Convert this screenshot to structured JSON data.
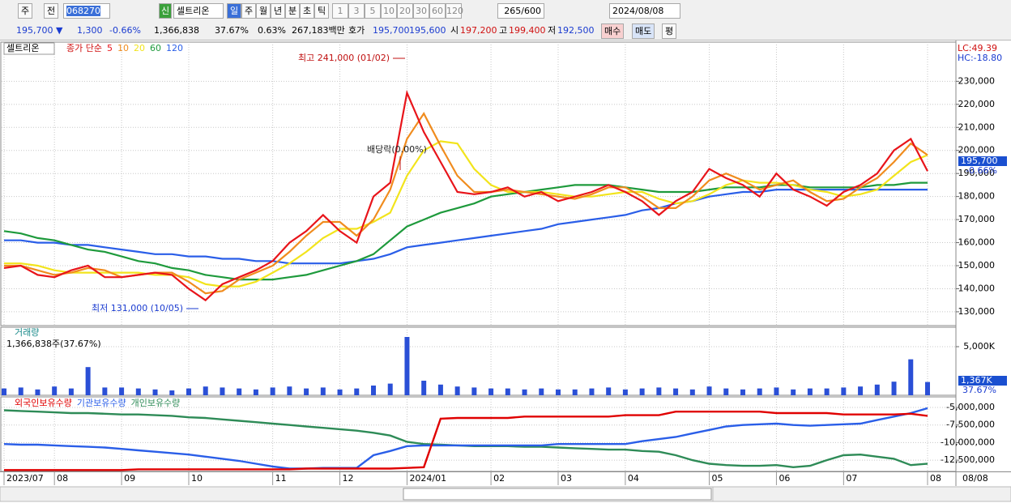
{
  "toolbar": {
    "period": "주",
    "mode": "전",
    "code": "068270",
    "badge": "신",
    "name": "셀트리온",
    "intervals": [
      "일",
      "주",
      "월",
      "년",
      "분",
      "초",
      "틱"
    ],
    "multipliers": [
      "1",
      "3",
      "5",
      "10",
      "20",
      "30",
      "60",
      "120"
    ],
    "count": "265",
    "max": "/600",
    "date": "2024/08/08"
  },
  "info_bar": {
    "price": "195,700 ▼",
    "change": "1,300",
    "change_pct": "-0.66%",
    "volume": "1,366,838",
    "volume_ratio": "37.67%",
    "turnover_pct": "0.63%",
    "amount": "267,183백만",
    "quote_label": "호가",
    "ask": "195,700",
    "bid": "195,600",
    "open_label": "시",
    "open": "197,200",
    "high_label": "고",
    "high": "199,400",
    "low_label": "저",
    "low": "192,500",
    "buy": "매수",
    "sell": "매도",
    "avg": "평"
  },
  "chart_data": [
    {
      "type": "line",
      "title": "셀트리온",
      "legend_title": "종가 단순",
      "series": [
        {
          "name": "5",
          "color": "#e8141a",
          "values": [
            149000,
            150000,
            146000,
            145000,
            148000,
            150000,
            145000,
            145000,
            146000,
            147000,
            146000,
            140000,
            135000,
            142000,
            145000,
            148000,
            152000,
            160000,
            165000,
            172000,
            165000,
            160000,
            180000,
            186000,
            225000,
            208000,
            195000,
            182000,
            181000,
            182000,
            184000,
            180000,
            182000,
            178000,
            180000,
            182000,
            185000,
            182000,
            178000,
            172000,
            178000,
            182000,
            192000,
            188000,
            185000,
            180000,
            190000,
            183000,
            180000,
            176000,
            182000,
            185000,
            190000,
            200000,
            205000,
            191000
          ]
        },
        {
          "name": "10",
          "color": "#f08c1e",
          "values": [
            150000,
            150000,
            148000,
            146000,
            147000,
            149000,
            148000,
            145000,
            146000,
            147000,
            147000,
            143000,
            138000,
            139000,
            144000,
            147000,
            150000,
            156000,
            163000,
            169000,
            169000,
            163000,
            170000,
            183000,
            205000,
            216000,
            202000,
            189000,
            182000,
            182000,
            183000,
            182000,
            181000,
            180000,
            179000,
            181000,
            184000,
            184000,
            180000,
            175000,
            175000,
            180000,
            187000,
            190000,
            187000,
            183000,
            185000,
            187000,
            182000,
            178000,
            179000,
            184000,
            188000,
            195000,
            203000,
            198000
          ]
        },
        {
          "name": "20",
          "color": "#f2e41c",
          "values": [
            151000,
            151000,
            150000,
            148000,
            147000,
            147000,
            147000,
            147000,
            147000,
            146000,
            146000,
            145000,
            142000,
            141000,
            141000,
            143000,
            147000,
            151000,
            156000,
            162000,
            166000,
            166000,
            169000,
            173000,
            189000,
            200000,
            204000,
            203000,
            192000,
            185000,
            182000,
            182000,
            182000,
            181000,
            180000,
            180000,
            181000,
            182000,
            182000,
            179000,
            177000,
            178000,
            181000,
            185000,
            187000,
            186000,
            186000,
            185000,
            183000,
            182000,
            180000,
            181000,
            183000,
            189000,
            195000,
            198000
          ]
        },
        {
          "name": "60",
          "color": "#1e9a3c",
          "values": [
            165000,
            164000,
            162000,
            161000,
            159000,
            157000,
            156000,
            154000,
            152000,
            151000,
            149000,
            148000,
            146000,
            145000,
            144000,
            144000,
            144000,
            145000,
            146000,
            148000,
            150000,
            152000,
            155000,
            161000,
            167000,
            170000,
            173000,
            175000,
            177000,
            180000,
            181000,
            182000,
            183000,
            184000,
            185000,
            185000,
            185000,
            184000,
            183000,
            182000,
            182000,
            182000,
            183000,
            184000,
            184000,
            184000,
            185000,
            185000,
            184000,
            184000,
            184000,
            184000,
            185000,
            185000,
            186000,
            186000
          ]
        },
        {
          "name": "120",
          "color": "#2a5ee8",
          "values": [
            161000,
            161000,
            160000,
            160000,
            159000,
            159000,
            158000,
            157000,
            156000,
            155000,
            155000,
            154000,
            154000,
            153000,
            153000,
            152000,
            152000,
            151000,
            151000,
            151000,
            151000,
            152000,
            153000,
            155000,
            158000,
            159000,
            160000,
            161000,
            162000,
            163000,
            164000,
            165000,
            166000,
            168000,
            169000,
            170000,
            171000,
            172000,
            174000,
            175000,
            177000,
            178000,
            180000,
            181000,
            182000,
            182000,
            183000,
            183000,
            183000,
            183000,
            183000,
            183000,
            183000,
            183000,
            183000,
            183000
          ]
        }
      ],
      "ylim": [
        124000,
        247000
      ],
      "yticks": [
        {
          "value": 130000,
          "label": "130,000"
        },
        {
          "value": 140000,
          "label": "140,000"
        },
        {
          "value": 150000,
          "label": "150,000"
        },
        {
          "value": 160000,
          "label": "160,000"
        },
        {
          "value": 170000,
          "label": "170,000"
        },
        {
          "value": 180000,
          "label": "180,000"
        },
        {
          "value": 190000,
          "label": "190,000"
        },
        {
          "value": 200000,
          "label": "200,000"
        },
        {
          "value": 210000,
          "label": "210,000"
        },
        {
          "value": 220000,
          "label": "220,000"
        },
        {
          "value": 230000,
          "label": "230,000"
        }
      ],
      "grid": true,
      "annotations": [
        "최고 241,000 (01/02)",
        "배당락(0.00%)",
        "최저 131,000 (10/05)"
      ],
      "corner_labels": [
        "LC:49.39",
        "HC:-18.80"
      ],
      "last_price": "195,700",
      "last_change": "-0.66%"
    },
    {
      "type": "bar",
      "title": "거래량",
      "subtitle": "1,366,838주(37.67%)",
      "color": "#2a4fd6",
      "values": [
        700000,
        800000,
        600000,
        900000,
        700000,
        2900000,
        800000,
        800000,
        700000,
        600000,
        500000,
        700000,
        900000,
        800000,
        700000,
        600000,
        800000,
        900000,
        700000,
        800000,
        600000,
        700000,
        1000000,
        1200000,
        6000000,
        1500000,
        1100000,
        900000,
        800000,
        700000,
        700000,
        600000,
        700000,
        600000,
        600000,
        700000,
        800000,
        600000,
        700000,
        800000,
        700000,
        600000,
        900000,
        700000,
        600000,
        700000,
        800000,
        600000,
        700000,
        700000,
        800000,
        900000,
        1100000,
        1400000,
        3700000,
        1366838
      ],
      "ylim": [
        0,
        7000000
      ],
      "yticks": [
        {
          "value": 5000000,
          "label": "5,000K"
        }
      ],
      "grid": true,
      "last_label": "1,367K",
      "last_ratio": "37.67%"
    },
    {
      "type": "line",
      "categories": [
        "2023/07",
        null,
        null,
        "08",
        null,
        null,
        null,
        "09",
        null,
        null,
        null,
        "10",
        null,
        null,
        null,
        null,
        "11",
        null,
        null,
        null,
        "12",
        null,
        null,
        null,
        "2024/01",
        null,
        null,
        null,
        null,
        "02",
        null,
        null,
        null,
        "03",
        null,
        null,
        null,
        "04",
        null,
        null,
        null,
        null,
        "05",
        null,
        null,
        null,
        "06",
        null,
        null,
        null,
        "07",
        null,
        null,
        null,
        null,
        "08"
      ],
      "series": [
        {
          "name": "외국인보유수량",
          "color": "#e00000",
          "values": [
            -13900000,
            -13900000,
            -13900000,
            -13900000,
            -13900000,
            -13900000,
            -13900000,
            -13900000,
            -13800000,
            -13800000,
            -13800000,
            -13800000,
            -13800000,
            -13800000,
            -13800000,
            -13800000,
            -13800000,
            -13800000,
            -13700000,
            -13700000,
            -13700000,
            -13700000,
            -13700000,
            -13700000,
            -13600000,
            -13500000,
            -6600000,
            -6500000,
            -6500000,
            -6500000,
            -6500000,
            -6300000,
            -6300000,
            -6300000,
            -6300000,
            -6300000,
            -6300000,
            -6100000,
            -6100000,
            -6100000,
            -5600000,
            -5600000,
            -5600000,
            -5600000,
            -5600000,
            -5600000,
            -5800000,
            -5800000,
            -5800000,
            -5800000,
            -6000000,
            -6000000,
            -6000000,
            -6000000,
            -5900000,
            -6200000
          ]
        },
        {
          "name": "기관보유수량",
          "color": "#2a5ee8",
          "values": [
            -10200000,
            -10300000,
            -10300000,
            -10400000,
            -10500000,
            -10600000,
            -10700000,
            -10900000,
            -11100000,
            -11300000,
            -11500000,
            -11700000,
            -12000000,
            -12300000,
            -12600000,
            -13000000,
            -13400000,
            -13700000,
            -13700000,
            -13600000,
            -13600000,
            -13600000,
            -11800000,
            -11200000,
            -10500000,
            -10400000,
            -10400000,
            -10400000,
            -10400000,
            -10400000,
            -10400000,
            -10400000,
            -10400000,
            -10200000,
            -10200000,
            -10200000,
            -10200000,
            -10200000,
            -9800000,
            -9500000,
            -9200000,
            -8700000,
            -8200000,
            -7700000,
            -7500000,
            -7400000,
            -7300000,
            -7500000,
            -7600000,
            -7500000,
            -7400000,
            -7300000,
            -6800000,
            -6300000,
            -5800000,
            -5100000
          ]
        },
        {
          "name": "개인보유수량",
          "color": "#2e8b57",
          "values": [
            -5400000,
            -5500000,
            -5600000,
            -5700000,
            -5800000,
            -5800000,
            -5900000,
            -6000000,
            -6000000,
            -6100000,
            -6200000,
            -6400000,
            -6500000,
            -6700000,
            -6900000,
            -7100000,
            -7300000,
            -7500000,
            -7700000,
            -7900000,
            -8100000,
            -8300000,
            -8600000,
            -9000000,
            -9900000,
            -10200000,
            -10300000,
            -10400000,
            -10500000,
            -10500000,
            -10500000,
            -10600000,
            -10600000,
            -10700000,
            -10800000,
            -10900000,
            -11000000,
            -11000000,
            -11200000,
            -11300000,
            -11800000,
            -12500000,
            -13000000,
            -13200000,
            -13300000,
            -13300000,
            -13200000,
            -13500000,
            -13300000,
            -12500000,
            -11800000,
            -11700000,
            -12000000,
            -12300000,
            -13200000,
            -13000000
          ]
        }
      ],
      "ylim": [
        -14100000,
        -3500000
      ],
      "yticks": [
        {
          "value": -12500000,
          "label": "-12,500,000"
        },
        {
          "value": -10000000,
          "label": "-10,000,000"
        },
        {
          "value": -7500000,
          "label": "-7,500,000"
        },
        {
          "value": -5000000,
          "label": "-5,000,000"
        }
      ],
      "grid": true,
      "end_label": "08/08"
    }
  ]
}
